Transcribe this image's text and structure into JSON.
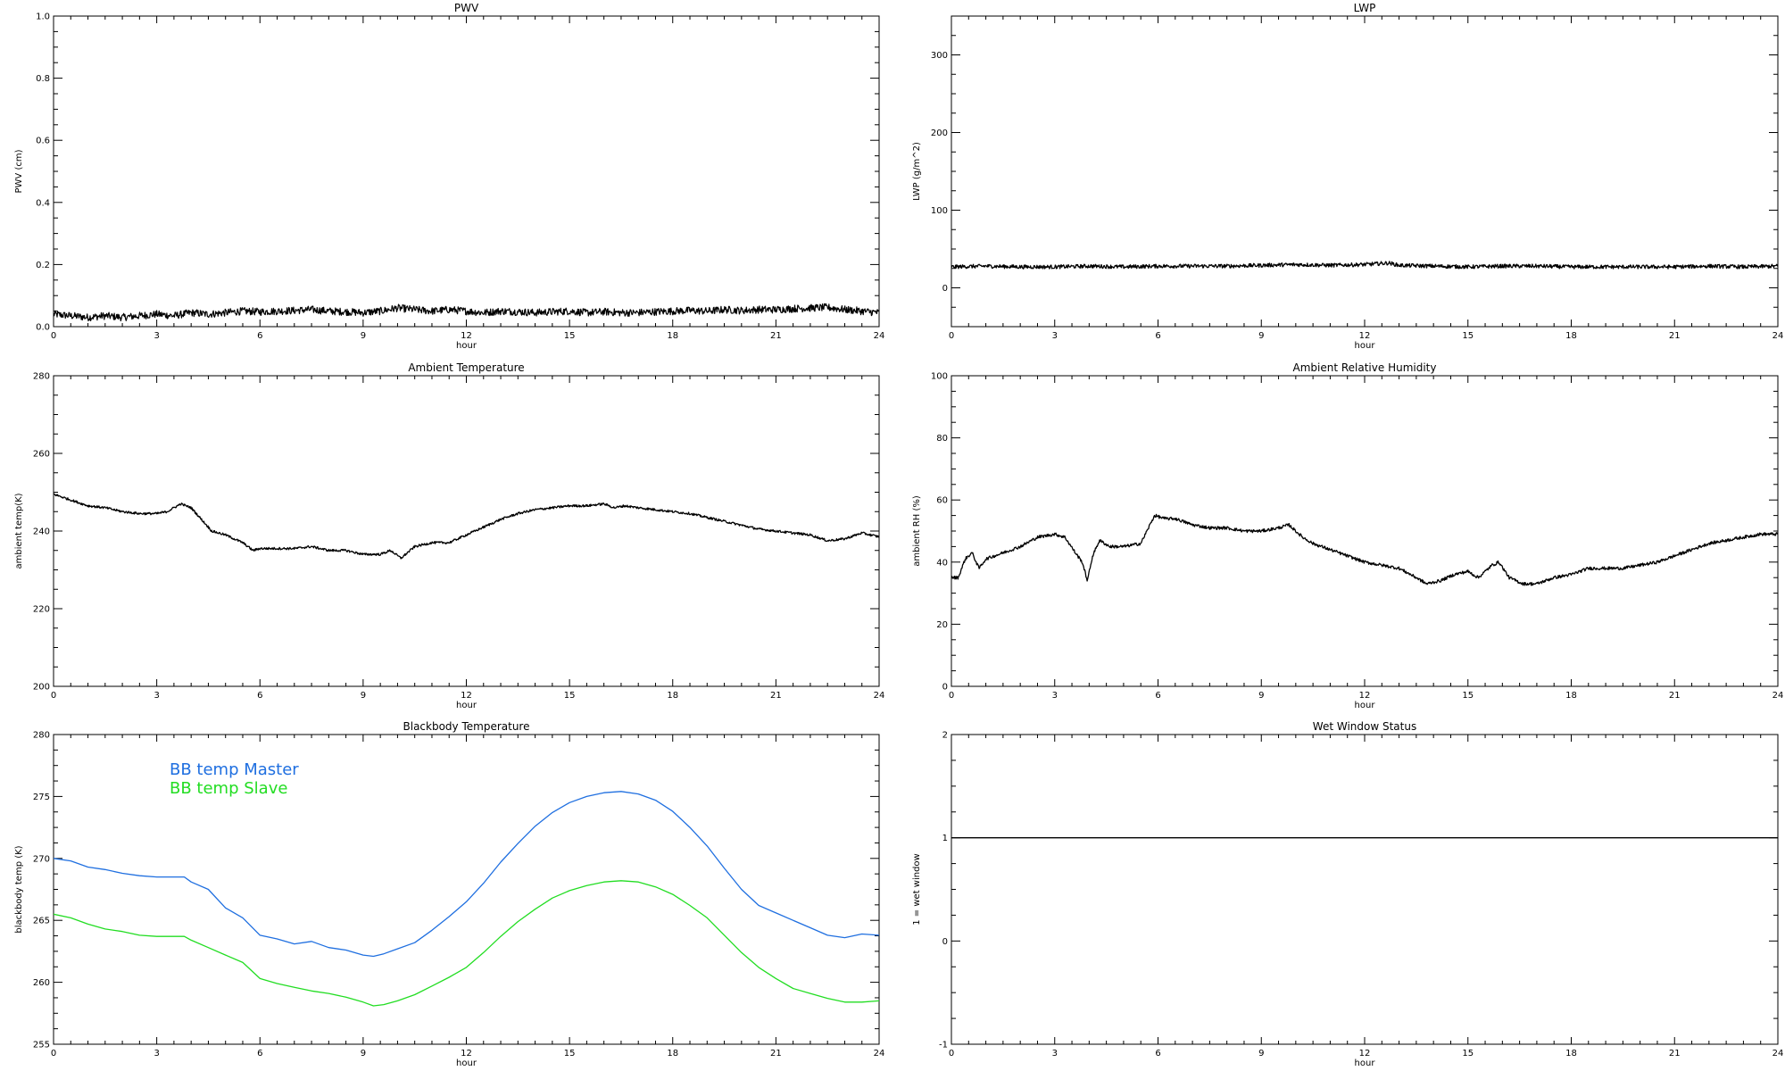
{
  "chart_data": [
    {
      "type": "line",
      "title": "PWV",
      "xlabel": "hour",
      "ylabel": "PWV (cm)",
      "xlim": [
        0,
        24
      ],
      "ylim": [
        0.0,
        1.0
      ],
      "xticks": [
        0,
        3,
        6,
        9,
        12,
        15,
        18,
        21,
        24
      ],
      "yticks": [
        0.0,
        0.2,
        0.4,
        0.6,
        0.8,
        1.0
      ],
      "ytick_labels": [
        "0.0",
        "0.2",
        "0.4",
        "0.6",
        "0.8",
        "1.0"
      ],
      "noise": 0.012,
      "series": [
        {
          "color": "#000000",
          "x": [
            0,
            0.5,
            1,
            1.5,
            2,
            2.5,
            3,
            3.5,
            4,
            4.5,
            5,
            5.5,
            6,
            6.5,
            7,
            7.5,
            8,
            8.5,
            9,
            9.5,
            10,
            10.5,
            11,
            11.5,
            12,
            12.5,
            13,
            13.5,
            14,
            14.5,
            15,
            15.5,
            16,
            16.5,
            17,
            17.5,
            18,
            18.5,
            19,
            19.5,
            20,
            20.5,
            21,
            21.5,
            22,
            22.5,
            23,
            23.5,
            24
          ],
          "y": [
            0.04,
            0.035,
            0.03,
            0.035,
            0.03,
            0.035,
            0.04,
            0.035,
            0.045,
            0.04,
            0.045,
            0.05,
            0.048,
            0.05,
            0.052,
            0.055,
            0.05,
            0.048,
            0.045,
            0.05,
            0.06,
            0.055,
            0.05,
            0.055,
            0.05,
            0.045,
            0.05,
            0.048,
            0.045,
            0.048,
            0.05,
            0.045,
            0.048,
            0.045,
            0.045,
            0.048,
            0.05,
            0.052,
            0.05,
            0.055,
            0.052,
            0.055,
            0.055,
            0.058,
            0.06,
            0.062,
            0.055,
            0.05,
            0.045
          ]
        }
      ]
    },
    {
      "type": "line",
      "title": "LWP",
      "xlabel": "hour",
      "ylabel": "LWP (g/m^2)",
      "xlim": [
        0,
        24
      ],
      "ylim": [
        -50,
        350
      ],
      "xticks": [
        0,
        3,
        6,
        9,
        12,
        15,
        18,
        21,
        24
      ],
      "yticks": [
        0,
        100,
        200,
        300
      ],
      "ytick_labels": [
        "0",
        "100",
        "200",
        "300"
      ],
      "noise": 2.5,
      "series": [
        {
          "color": "#000000",
          "x": [
            0,
            1,
            2,
            3,
            4,
            5,
            6,
            7,
            8,
            9,
            10,
            11,
            12,
            12.7,
            13,
            14,
            15,
            16,
            17,
            18,
            19,
            20,
            21,
            22,
            23,
            24
          ],
          "y": [
            27,
            28,
            27,
            27,
            28,
            27,
            28,
            28,
            28,
            29,
            30,
            29,
            30,
            32,
            29,
            28,
            27,
            28,
            28,
            27,
            27,
            27,
            27,
            28,
            27,
            28
          ]
        }
      ]
    },
    {
      "type": "line",
      "title": "Ambient Temperature",
      "xlabel": "hour",
      "ylabel": "ambient temp(K)",
      "xlim": [
        0,
        24
      ],
      "ylim": [
        200,
        280
      ],
      "xticks": [
        0,
        3,
        6,
        9,
        12,
        15,
        18,
        21,
        24
      ],
      "yticks": [
        200,
        220,
        240,
        260,
        280
      ],
      "ytick_labels": [
        "200",
        "220",
        "240",
        "260",
        "280"
      ],
      "noise": 0.3,
      "series": [
        {
          "color": "#000000",
          "x": [
            0,
            0.5,
            1,
            1.5,
            2,
            2.5,
            3,
            3.3,
            3.7,
            4.0,
            4.3,
            4.6,
            5.0,
            5.5,
            5.8,
            6.0,
            6.5,
            7.0,
            7.5,
            8.0,
            8.5,
            9.0,
            9.5,
            9.8,
            10.1,
            10.5,
            11.0,
            11.5,
            12.0,
            12.5,
            13.0,
            13.5,
            14.0,
            14.5,
            15.0,
            15.5,
            16.0,
            16.3,
            16.6,
            17.0,
            17.5,
            18.0,
            18.5,
            19.0,
            19.5,
            20.0,
            20.5,
            21.0,
            21.5,
            22.0,
            22.5,
            23.0,
            23.5,
            24.0
          ],
          "y": [
            249.5,
            248,
            246.5,
            246,
            245,
            244.5,
            244.5,
            245,
            247,
            246,
            243,
            240,
            239,
            237,
            235,
            235.5,
            235.5,
            235.5,
            236,
            235,
            235,
            234,
            234,
            235,
            233,
            236,
            237,
            237,
            239,
            241,
            243,
            244.5,
            245.5,
            246,
            246.5,
            246.5,
            247,
            246,
            246.5,
            246,
            245.5,
            245,
            244.5,
            243.5,
            242.5,
            241.5,
            240.5,
            240,
            239.5,
            239,
            237.5,
            238,
            239.5,
            238.5
          ]
        }
      ]
    },
    {
      "type": "line",
      "title": "Ambient Relative Humidity",
      "xlabel": "hour",
      "ylabel": "ambient RH (%)",
      "xlim": [
        0,
        24
      ],
      "ylim": [
        0,
        100
      ],
      "xticks": [
        0,
        3,
        6,
        9,
        12,
        15,
        18,
        21,
        24
      ],
      "yticks": [
        0,
        20,
        40,
        60,
        80,
        100
      ],
      "ytick_labels": [
        "0",
        "20",
        "40",
        "60",
        "80",
        "100"
      ],
      "noise": 0.5,
      "series": [
        {
          "color": "#000000",
          "x": [
            0,
            0.2,
            0.4,
            0.6,
            0.8,
            1.0,
            1.5,
            2.0,
            2.5,
            3.0,
            3.3,
            3.6,
            3.8,
            3.95,
            4.1,
            4.3,
            4.6,
            5.0,
            5.5,
            5.9,
            6.2,
            6.5,
            7.0,
            7.5,
            8.0,
            8.5,
            9.0,
            9.5,
            9.8,
            10.2,
            10.5,
            11.0,
            11.5,
            12.0,
            12.5,
            13.0,
            13.5,
            13.8,
            14.2,
            14.6,
            15.0,
            15.3,
            15.7,
            15.9,
            16.2,
            16.6,
            17.0,
            17.5,
            18.0,
            18.5,
            19.0,
            19.5,
            20.0,
            20.5,
            21.0,
            21.5,
            22.0,
            22.5,
            23.0,
            23.5,
            24.0
          ],
          "y": [
            35,
            35,
            41,
            43,
            38,
            41,
            43,
            45,
            48,
            49,
            48,
            43,
            40,
            34,
            42,
            47,
            45,
            45,
            46,
            55,
            54,
            54,
            52,
            51,
            51,
            50,
            50,
            51,
            52,
            48,
            46,
            44,
            42,
            40,
            39,
            38,
            35,
            33,
            34,
            36,
            37,
            35,
            39,
            40,
            35,
            33,
            33,
            35,
            36,
            38,
            38,
            38,
            39,
            40,
            42,
            44,
            46,
            47,
            48,
            49,
            49
          ]
        }
      ]
    },
    {
      "type": "line",
      "title": "Blackbody Temperature",
      "xlabel": "hour",
      "ylabel": "blackbody temp (K)",
      "xlim": [
        0,
        24
      ],
      "ylim": [
        255,
        280
      ],
      "xticks": [
        0,
        3,
        6,
        9,
        12,
        15,
        18,
        21,
        24
      ],
      "yticks": [
        255,
        260,
        265,
        270,
        275,
        280
      ],
      "ytick_labels": [
        "255",
        "260",
        "265",
        "270",
        "275",
        "280"
      ],
      "noise": 0,
      "legend": {
        "placement": "top-left"
      },
      "series": [
        {
          "name": "BB temp Master",
          "color": "#1f6fe0",
          "x": [
            0,
            0.5,
            1,
            1.5,
            2,
            2.5,
            3,
            3.5,
            3.8,
            4.0,
            4.5,
            5.0,
            5.5,
            6.0,
            6.5,
            7.0,
            7.5,
            8.0,
            8.5,
            9.0,
            9.3,
            9.6,
            10.0,
            10.5,
            11.0,
            11.5,
            12.0,
            12.5,
            13.0,
            13.5,
            14.0,
            14.5,
            15.0,
            15.5,
            16.0,
            16.5,
            17.0,
            17.5,
            18.0,
            18.5,
            19.0,
            19.5,
            20.0,
            20.5,
            21.0,
            21.5,
            22.0,
            22.5,
            23.0,
            23.5,
            24.0
          ],
          "y": [
            270,
            269.8,
            269.3,
            269.1,
            268.8,
            268.6,
            268.5,
            268.5,
            268.5,
            268.1,
            267.5,
            266,
            265.2,
            263.8,
            263.5,
            263.1,
            263.3,
            262.8,
            262.6,
            262.2,
            262.1,
            262.3,
            262.7,
            263.2,
            264.2,
            265.3,
            266.5,
            268,
            269.7,
            271.2,
            272.6,
            273.7,
            274.5,
            275,
            275.3,
            275.4,
            275.2,
            274.7,
            273.8,
            272.5,
            271,
            269.2,
            267.5,
            266.2,
            265.6,
            265,
            264.4,
            263.8,
            263.6,
            263.9,
            263.8
          ]
        },
        {
          "name": "BB temp Slave",
          "color": "#22dd22",
          "x": [
            0,
            0.5,
            1,
            1.5,
            2,
            2.5,
            3,
            3.5,
            3.8,
            4.0,
            4.5,
            5.0,
            5.5,
            6.0,
            6.5,
            7.0,
            7.5,
            8.0,
            8.5,
            9.0,
            9.3,
            9.6,
            10.0,
            10.5,
            11.0,
            11.5,
            12.0,
            12.5,
            13.0,
            13.5,
            14.0,
            14.5,
            15.0,
            15.5,
            16.0,
            16.5,
            17.0,
            17.5,
            18.0,
            18.5,
            19.0,
            19.5,
            20.0,
            20.5,
            21.0,
            21.5,
            22.0,
            22.5,
            23.0,
            23.5,
            24.0
          ],
          "y": [
            265.5,
            265.2,
            264.7,
            264.3,
            264.1,
            263.8,
            263.7,
            263.7,
            263.7,
            263.4,
            262.8,
            262.2,
            261.6,
            260.3,
            259.9,
            259.6,
            259.3,
            259.1,
            258.8,
            258.4,
            258.1,
            258.2,
            258.5,
            259,
            259.7,
            260.4,
            261.2,
            262.4,
            263.7,
            264.9,
            265.9,
            266.8,
            267.4,
            267.8,
            268.1,
            268.2,
            268.1,
            267.7,
            267.1,
            266.2,
            265.2,
            263.8,
            262.4,
            261.2,
            260.3,
            259.5,
            259.1,
            258.7,
            258.4,
            258.4,
            258.5
          ]
        }
      ]
    },
    {
      "type": "line",
      "title": "Wet Window Status",
      "xlabel": "hour",
      "ylabel": "1 = wet window",
      "xlim": [
        0,
        24
      ],
      "ylim": [
        -1,
        2
      ],
      "xticks": [
        0,
        3,
        6,
        9,
        12,
        15,
        18,
        21,
        24
      ],
      "yticks": [
        -1,
        0,
        1,
        2
      ],
      "ytick_labels": [
        "-1",
        "0",
        "1",
        "2"
      ],
      "noise": 0,
      "series": [
        {
          "color": "#000000",
          "x": [
            0,
            24
          ],
          "y": [
            1,
            1
          ]
        }
      ]
    }
  ]
}
